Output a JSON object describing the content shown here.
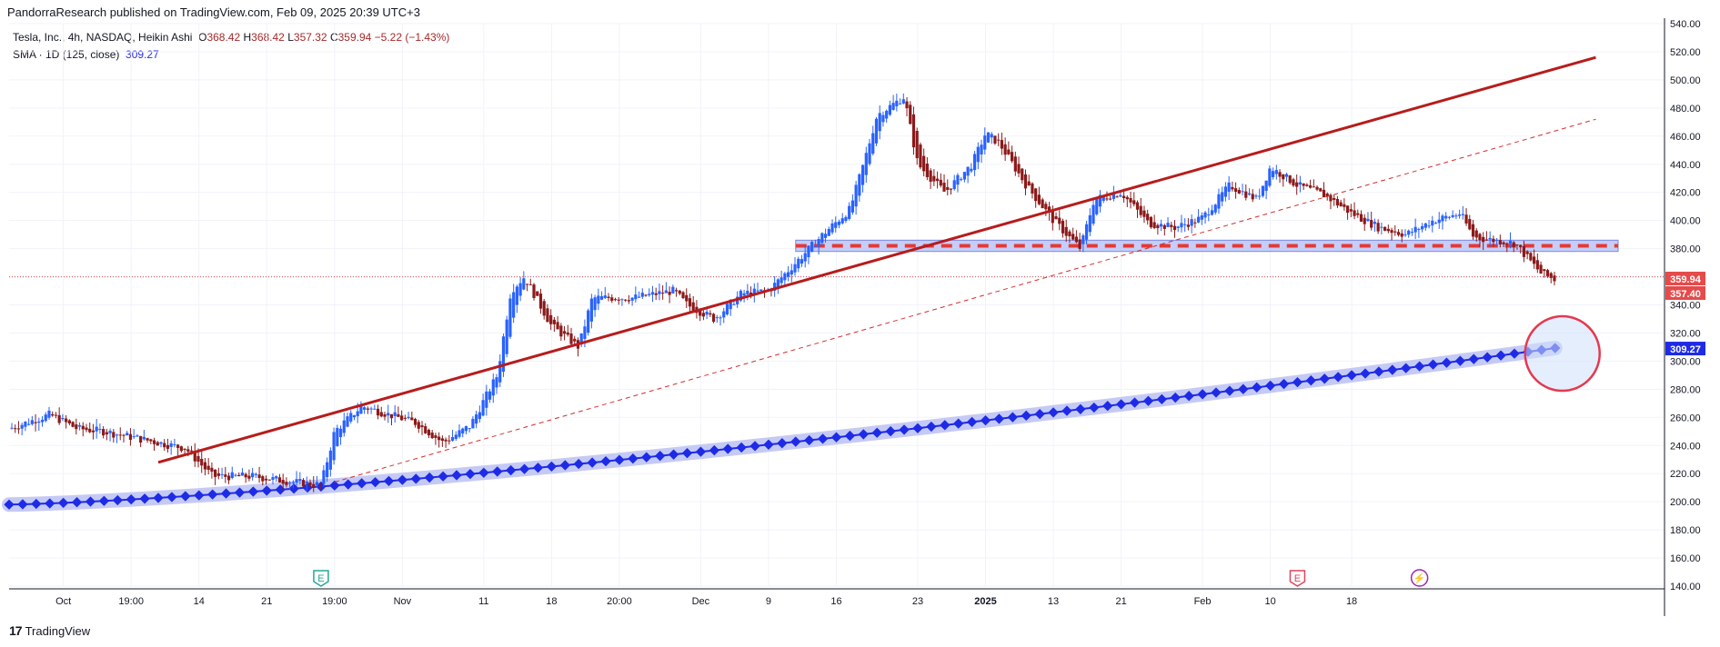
{
  "header": {
    "published_by": "PandorraResearch published on TradingView.com, Feb 09, 2025 20:39 UTC+3"
  },
  "legend": {
    "symbol_line": "Tesla, Inc., 4h, NASDAQ, Heikin Ashi",
    "o_label": "O",
    "o_value": "368.42",
    "h_label": "H",
    "h_value": "368.42",
    "l_label": "L",
    "l_value": "357.32",
    "c_label": "C",
    "c_value": "359.94",
    "change": "−5.22 (−1.43%)",
    "sma_label": "SMA · 1D (125, close)",
    "sma_value": "309.27"
  },
  "footer": {
    "logo": "17",
    "brand": "TradingView"
  },
  "colors": {
    "up": "#2962ff",
    "down": "#8b1a1a",
    "trendline": "#b71c1c",
    "dashed_trend": "#d32f2f",
    "zone_fill": "#b3bdf5",
    "zone_dash": "#e53935",
    "sma": "#1e2be6",
    "sma_halo": "#c5caf5",
    "circle": "#e53950",
    "price_label": "#e54b4b",
    "sma_label": "#1e2be6",
    "earnings": "#26a69a"
  },
  "chart_data": {
    "type": "candlestick",
    "style": "Heikin Ashi",
    "symbol": "Tesla, Inc., 4h, NASDAQ",
    "ylim": [
      140,
      540
    ],
    "y_ticks": [
      "540.00",
      "520.00",
      "500.00",
      "480.00",
      "460.00",
      "440.00",
      "420.00",
      "400.00",
      "380.00",
      "360.00",
      "340.00",
      "320.00",
      "300.00",
      "280.00",
      "260.00",
      "240.00",
      "220.00",
      "200.00",
      "180.00",
      "160.00",
      "140.00"
    ],
    "x_ticks": [
      "Oct",
      "19:00",
      "14",
      "21",
      "19:00",
      "Nov",
      "11",
      "18",
      "20:00",
      "Dec",
      "9",
      "16",
      "23",
      "2025",
      "13",
      "21",
      "Feb",
      "10",
      "18"
    ],
    "grid": true,
    "price_labels": {
      "last": "359.94",
      "low": "357.40",
      "sma": "309.27"
    },
    "price_path": [
      [
        0,
        252
      ],
      [
        3,
        262
      ],
      [
        5,
        252
      ],
      [
        7,
        250
      ],
      [
        10,
        244
      ],
      [
        13,
        238
      ],
      [
        15,
        218
      ],
      [
        18,
        218
      ],
      [
        21,
        214
      ],
      [
        23,
        212
      ],
      [
        24,
        250
      ],
      [
        26,
        268
      ],
      [
        28,
        262
      ],
      [
        30,
        256
      ],
      [
        32,
        242
      ],
      [
        34,
        254
      ],
      [
        36,
        290
      ],
      [
        37,
        350
      ],
      [
        38,
        360
      ],
      [
        40,
        325
      ],
      [
        42,
        310
      ],
      [
        43,
        345
      ],
      [
        46,
        345
      ],
      [
        49,
        350
      ],
      [
        50,
        340
      ],
      [
        52,
        330
      ],
      [
        54,
        348
      ],
      [
        56,
        350
      ],
      [
        58,
        370
      ],
      [
        60,
        390
      ],
      [
        62,
        408
      ],
      [
        63,
        440
      ],
      [
        64,
        475
      ],
      [
        66,
        488
      ],
      [
        67,
        440
      ],
      [
        69,
        420
      ],
      [
        71,
        440
      ],
      [
        72,
        462
      ],
      [
        73,
        455
      ],
      [
        75,
        425
      ],
      [
        77,
        400
      ],
      [
        79,
        380
      ],
      [
        80,
        415
      ],
      [
        82,
        420
      ],
      [
        84,
        398
      ],
      [
        86,
        395
      ],
      [
        88,
        402
      ],
      [
        90,
        425
      ],
      [
        92,
        415
      ],
      [
        93,
        438
      ],
      [
        95,
        425
      ],
      [
        97,
        418
      ],
      [
        99,
        405
      ],
      [
        101,
        395
      ],
      [
        103,
        390
      ],
      [
        105,
        400
      ],
      [
        107,
        405
      ],
      [
        108,
        388
      ],
      [
        111,
        384
      ],
      [
        113,
        362
      ],
      [
        114,
        358
      ]
    ],
    "x_ticks_pos": [
      4,
      9,
      14,
      19,
      24,
      29,
      35,
      40,
      45,
      51,
      56,
      61,
      67,
      72,
      77,
      82,
      88,
      93,
      99
    ],
    "sma_start": 198,
    "sma_end": 309.27,
    "sma_points": 114,
    "trendline": [
      [
        11,
        228
      ],
      [
        117,
        516
      ]
    ],
    "dashed_trendline": [
      [
        24,
        214
      ],
      [
        117,
        472
      ]
    ],
    "resistance_zone": [
      378,
      386
    ],
    "resistance_level": 382,
    "resistance_start": 58,
    "last_price": 359.94,
    "events": [
      {
        "x": 23,
        "label": "E"
      },
      {
        "x": 95,
        "label": "E"
      },
      {
        "x": 104,
        "label": "⚡"
      }
    ]
  }
}
